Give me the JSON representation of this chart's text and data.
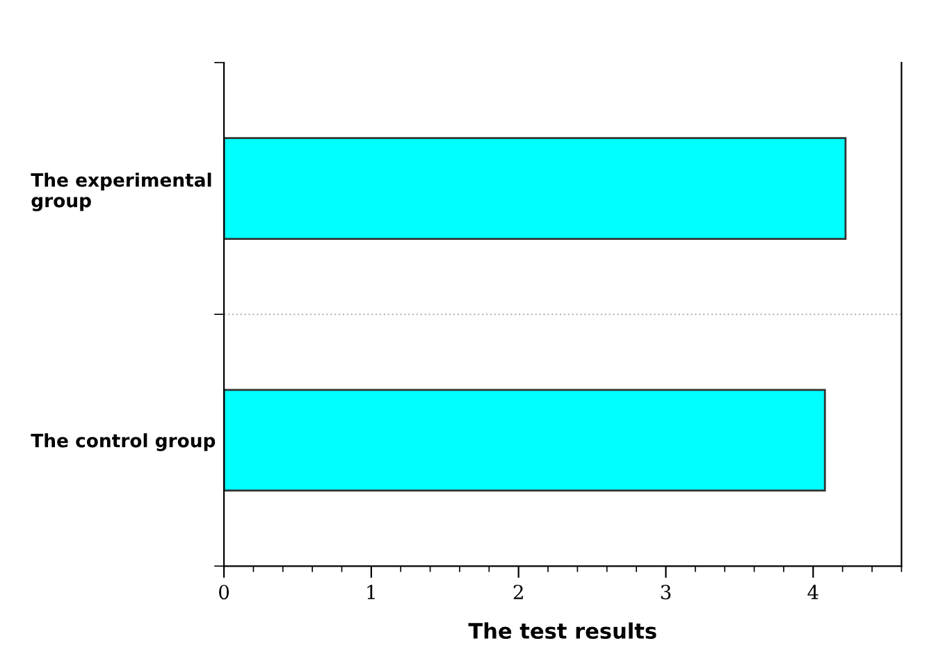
{
  "chart_data": {
    "type": "bar",
    "orientation": "horizontal",
    "xlabel": "The test results",
    "categories": [
      "The experimental group",
      "The control group"
    ],
    "values": [
      4.22,
      4.08
    ],
    "color": "#00ffff",
    "xlim": [
      0,
      4.6
    ],
    "xticks": [
      0,
      {
        "value": 0.2,
        "label": null
      },
      {
        "value": 0.4,
        "label": null
      },
      {
        "value": 0.6,
        "label": null
      },
      {
        "value": 0.8,
        "label": null
      },
      1,
      {
        "value": 1.2,
        "label": null
      },
      {
        "value": 1.4,
        "label": null
      },
      {
        "value": 1.6,
        "label": null
      },
      {
        "value": 1.8,
        "label": null
      },
      2,
      {
        "value": 2.2,
        "label": null
      },
      {
        "value": 2.4,
        "label": null
      },
      {
        "value": 2.6,
        "label": null
      },
      {
        "value": 2.8,
        "label": null
      },
      3,
      {
        "value": 3.2,
        "label": null
      },
      {
        "value": 3.4,
        "label": null
      },
      {
        "value": 3.6,
        "label": null
      },
      {
        "value": 3.8,
        "label": null
      },
      4,
      {
        "value": 4.2,
        "label": null
      },
      {
        "value": 4.4,
        "label": null
      },
      {
        "value": 4.6,
        "label": null
      }
    ],
    "grid": "y"
  }
}
